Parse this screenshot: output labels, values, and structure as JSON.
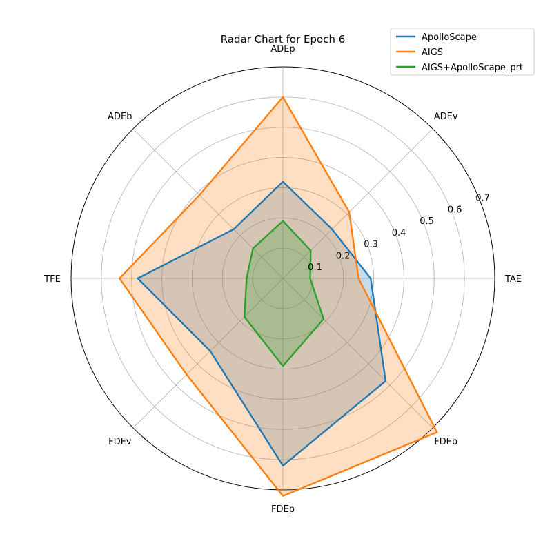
{
  "chart_data": {
    "type": "radar",
    "title": "Radar Chart for Epoch 6",
    "categories": [
      "TAE",
      "ADEv",
      "ADEp",
      "ADEb",
      "TFE",
      "FDEv",
      "FDEp",
      "FDEb"
    ],
    "rlim": [
      0,
      0.7
    ],
    "rticks": [
      0.1,
      0.2,
      0.3,
      0.4,
      0.5,
      0.6,
      0.7
    ],
    "rtick_labels": [
      "0.1",
      "0.2",
      "0.3",
      "0.4",
      "0.5",
      "0.6",
      "0.7"
    ],
    "grid": true,
    "legend_position": "top-right",
    "series": [
      {
        "name": "ApolloScape",
        "color": "#1f77b4",
        "values": [
          0.29,
          0.23,
          0.32,
          0.23,
          0.48,
          0.34,
          0.62,
          0.48
        ]
      },
      {
        "name": "AIGS",
        "color": "#ff7f0e",
        "values": [
          0.25,
          0.31,
          0.6,
          0.39,
          0.54,
          0.45,
          0.72,
          0.72
        ]
      },
      {
        "name": "AIGS+ApolloScape_prt",
        "color": "#2ca02c",
        "values": [
          0.09,
          0.13,
          0.19,
          0.14,
          0.12,
          0.18,
          0.29,
          0.19
        ]
      }
    ]
  }
}
